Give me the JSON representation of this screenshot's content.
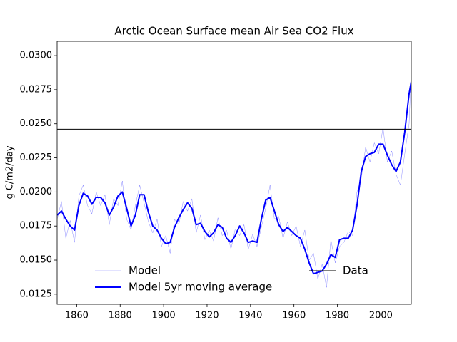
{
  "chart_data": {
    "type": "line",
    "title": "Arctic Ocean Surface mean Air Sea CO2 Flux",
    "ylabel": "g C/m2/day",
    "x": [
      1851,
      1853,
      1855,
      1857,
      1859,
      1861,
      1863,
      1865,
      1867,
      1869,
      1871,
      1873,
      1875,
      1877,
      1879,
      1881,
      1883,
      1885,
      1887,
      1889,
      1891,
      1893,
      1895,
      1897,
      1899,
      1901,
      1903,
      1905,
      1907,
      1909,
      1911,
      1913,
      1915,
      1917,
      1919,
      1921,
      1923,
      1925,
      1927,
      1929,
      1931,
      1933,
      1935,
      1937,
      1939,
      1941,
      1943,
      1945,
      1947,
      1949,
      1951,
      1953,
      1955,
      1957,
      1959,
      1961,
      1963,
      1965,
      1967,
      1969,
      1971,
      1973,
      1975,
      1977,
      1979,
      1981,
      1983,
      1985,
      1987,
      1989,
      1991,
      1993,
      1995,
      1997,
      1999,
      2001,
      2003,
      2005,
      2007,
      2009,
      2011,
      2013,
      2014
    ],
    "series": [
      {
        "name": "Model",
        "color": "#0000ff",
        "width": 0.5,
        "alpha": 0.45,
        "legend": "lower left",
        "values": [
          0.018,
          0.0193,
          0.0166,
          0.0179,
          0.0163,
          0.0197,
          0.0205,
          0.019,
          0.0184,
          0.02,
          0.019,
          0.0198,
          0.0176,
          0.0195,
          0.019,
          0.0208,
          0.018,
          0.0172,
          0.019,
          0.0205,
          0.0192,
          0.0178,
          0.017,
          0.018,
          0.016,
          0.0168,
          0.0155,
          0.018,
          0.0176,
          0.0193,
          0.0186,
          0.0195,
          0.017,
          0.0183,
          0.0165,
          0.0172,
          0.0164,
          0.0181,
          0.0168,
          0.0172,
          0.0158,
          0.0173,
          0.0168,
          0.0176,
          0.0158,
          0.0169,
          0.016,
          0.0174,
          0.0188,
          0.0205,
          0.018,
          0.0182,
          0.0166,
          0.0178,
          0.0168,
          0.0175,
          0.016,
          0.0172,
          0.015,
          0.0155,
          0.0136,
          0.0147,
          0.013,
          0.0165,
          0.0148,
          0.016,
          0.0163,
          0.0171,
          0.0168,
          0.02,
          0.021,
          0.0233,
          0.0222,
          0.0236,
          0.0228,
          0.0247,
          0.0222,
          0.023,
          0.0213,
          0.0205,
          0.0228,
          0.025,
          0.029
        ]
      },
      {
        "name": "Model 5yr moving average",
        "color": "#0000ff",
        "width": 2,
        "alpha": 1,
        "legend": "lower left",
        "values": [
          0.0183,
          0.0186,
          0.018,
          0.0175,
          0.0172,
          0.019,
          0.0199,
          0.0197,
          0.0191,
          0.0196,
          0.0196,
          0.0192,
          0.0183,
          0.0189,
          0.0197,
          0.02,
          0.0188,
          0.0175,
          0.0183,
          0.0198,
          0.0198,
          0.0185,
          0.0175,
          0.0172,
          0.0166,
          0.0162,
          0.0163,
          0.0174,
          0.0181,
          0.0187,
          0.0192,
          0.0188,
          0.0176,
          0.0177,
          0.0171,
          0.0167,
          0.017,
          0.0176,
          0.0174,
          0.0166,
          0.0163,
          0.0168,
          0.0175,
          0.017,
          0.0163,
          0.0164,
          0.0163,
          0.018,
          0.0194,
          0.0196,
          0.0186,
          0.0176,
          0.0171,
          0.0174,
          0.0171,
          0.0168,
          0.0166,
          0.0158,
          0.0148,
          0.014,
          0.0141,
          0.0142,
          0.0147,
          0.0154,
          0.0152,
          0.0165,
          0.0166,
          0.0166,
          0.0172,
          0.019,
          0.0215,
          0.0226,
          0.0228,
          0.0229,
          0.0235,
          0.0235,
          0.0227,
          0.022,
          0.0215,
          0.0222,
          0.0244,
          0.0272,
          0.0281
        ]
      }
    ],
    "hlines": [
      {
        "name": "Data",
        "value": 0.0246,
        "color": "#000000",
        "legend": "lower right"
      }
    ],
    "xlim": [
      1851,
      2014
    ],
    "xticks": [
      1860,
      1880,
      1900,
      1920,
      1940,
      1960,
      1980,
      2000
    ],
    "ylim": [
      0.01176,
      0.03105
    ],
    "yticks": [
      0.0125,
      {
        "value": 0.015,
        "label": "0.0150"
      },
      0.0175,
      {
        "value": 0.02,
        "label": "0.0200"
      },
      0.0225,
      {
        "value": 0.025,
        "label": "0.0250"
      },
      0.0275,
      {
        "value": 0.03,
        "label": "0.0300"
      }
    ]
  }
}
